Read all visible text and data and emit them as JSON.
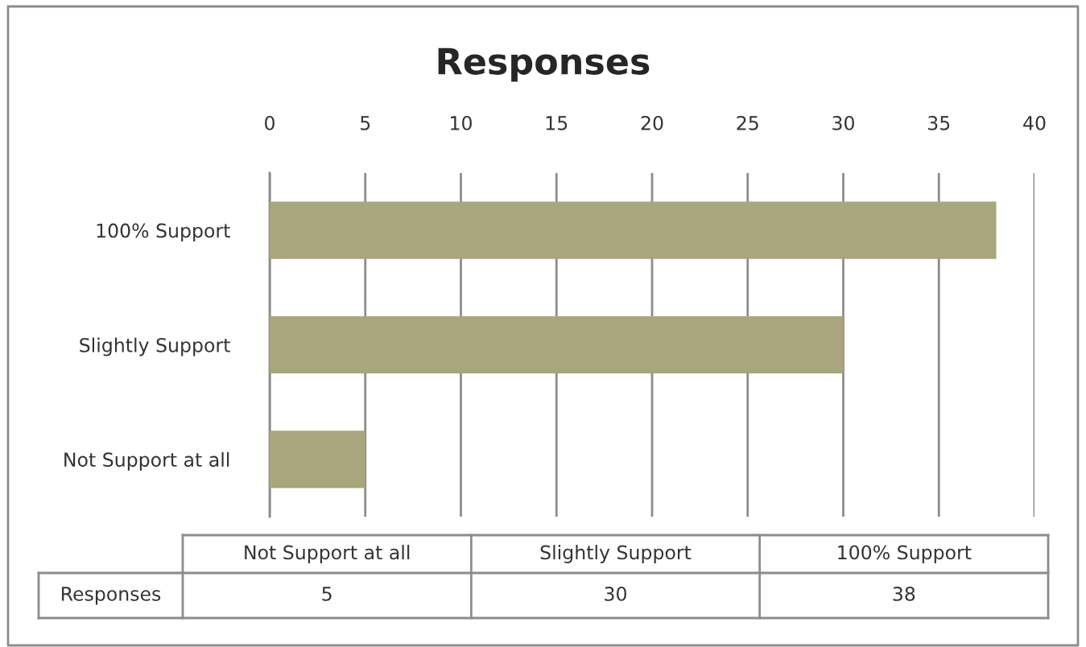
{
  "chart_data": {
    "type": "bar",
    "orientation": "horizontal",
    "title": "Responses",
    "categories": [
      "100% Support",
      "Slightly Support",
      "Not Support at all"
    ],
    "series": [
      {
        "name": "Responses",
        "color": "#a9a57c",
        "values": [
          38,
          30,
          5
        ]
      }
    ],
    "xlim": [
      0,
      40
    ],
    "xticks": [
      0,
      5,
      10,
      15,
      20,
      25,
      30,
      35,
      40
    ],
    "grid": "x",
    "legend": false,
    "annotations": [
      "5",
      "30",
      "38"
    ]
  }
}
